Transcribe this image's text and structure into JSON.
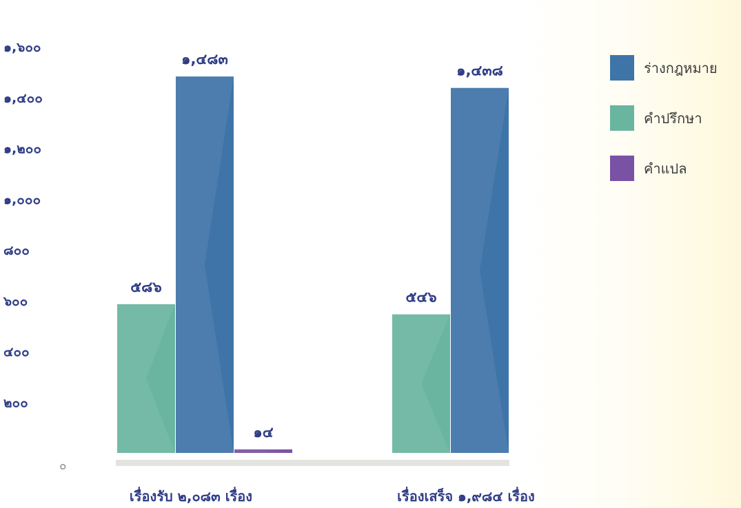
{
  "chart_data": {
    "type": "bar",
    "categories": [
      "เรื่องรับ ๒,๐๘๓ เรื่อง",
      "เรื่องเสร็จ ๑,๙๘๔ เรื่อง"
    ],
    "series": [
      {
        "name": "ร่างกฎหมาย",
        "color": "#3f74a8",
        "values": [
          1483,
          1438
        ],
        "labels": [
          "๑,๔๘๓",
          "๑,๔๓๘"
        ]
      },
      {
        "name": "คำปรึกษา",
        "color": "#6ab5a0",
        "values": [
          586,
          546
        ],
        "labels": [
          "๕๘๖",
          "๕๔๖"
        ]
      },
      {
        "name": "คำแปล",
        "color": "#7a52a5",
        "values": [
          14,
          0
        ],
        "labels": [
          "๑๔",
          ""
        ]
      }
    ],
    "yticks": [
      {
        "value": 0,
        "label": "๐"
      },
      {
        "value": 200,
        "label": "๒๐๐"
      },
      {
        "value": 400,
        "label": "๔๐๐"
      },
      {
        "value": 600,
        "label": "๖๐๐"
      },
      {
        "value": 800,
        "label": "๘๐๐"
      },
      {
        "value": 1000,
        "label": "๑,๐๐๐"
      },
      {
        "value": 1200,
        "label": "๑,๒๐๐"
      },
      {
        "value": 1400,
        "label": "๑,๔๐๐"
      },
      {
        "value": 1600,
        "label": "๑,๖๐๐"
      }
    ],
    "ylim": [
      0,
      1600
    ],
    "legend_position": "top-right",
    "grid": false
  }
}
